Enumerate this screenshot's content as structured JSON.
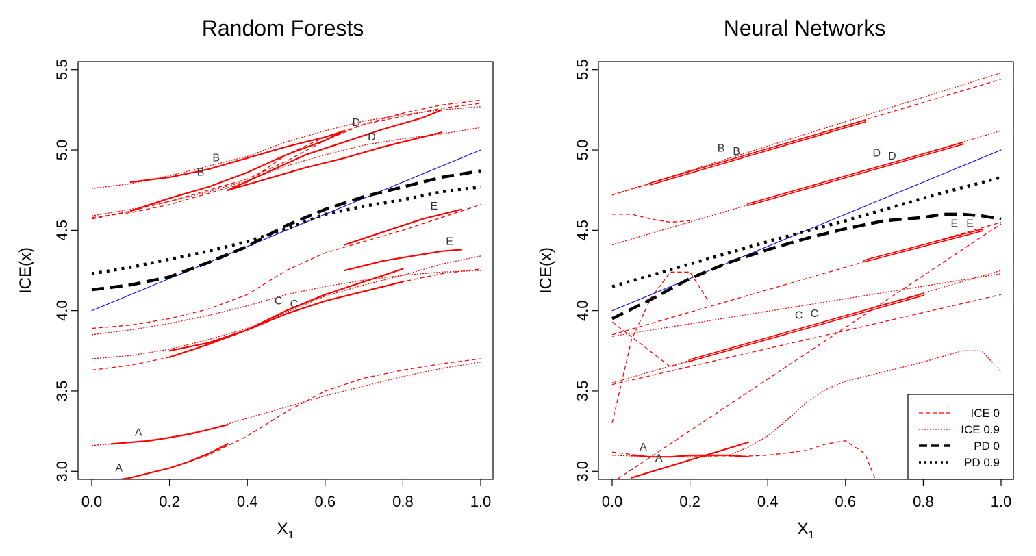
{
  "chart_data": [
    {
      "type": "line",
      "title": "Random Forests",
      "xlabel": "X",
      "xlabel_sub": "1",
      "ylabel": "ICE(x)",
      "xlim": [
        0.0,
        1.0
      ],
      "ylim": [
        2.95,
        5.55
      ],
      "x_ticks": [
        "0.0",
        "0.2",
        "0.4",
        "0.6",
        "0.8",
        "1.0"
      ],
      "y_ticks": [
        "3.0",
        "3.5",
        "4.0",
        "4.5",
        "5.0",
        "5.5"
      ],
      "grid": false,
      "series": [
        {
          "style": "ice0",
          "x": [
            0.0,
            0.1,
            0.2,
            0.3,
            0.4,
            0.5,
            0.6,
            0.7,
            0.8,
            0.9,
            1.0
          ],
          "values": [
            2.92,
            2.96,
            3.02,
            3.1,
            3.22,
            3.37,
            3.5,
            3.58,
            3.63,
            3.67,
            3.7
          ]
        },
        {
          "style": "ice09",
          "x": [
            0.0,
            0.1,
            0.2,
            0.3,
            0.4,
            0.5,
            0.6,
            0.7,
            0.8,
            0.9,
            1.0
          ],
          "values": [
            3.16,
            3.18,
            3.21,
            3.26,
            3.33,
            3.4,
            3.47,
            3.53,
            3.59,
            3.64,
            3.68
          ]
        },
        {
          "style": "ice0",
          "x": [
            0.0,
            0.1,
            0.2,
            0.3,
            0.4,
            0.5,
            0.6,
            0.7,
            0.8,
            0.9,
            1.0
          ],
          "values": [
            3.63,
            3.66,
            3.71,
            3.79,
            3.88,
            3.98,
            4.06,
            4.12,
            4.18,
            4.23,
            4.26
          ]
        },
        {
          "style": "ice09",
          "x": [
            0.0,
            0.1,
            0.2,
            0.3,
            0.4,
            0.5,
            0.6,
            0.7,
            0.8,
            0.9,
            1.0
          ],
          "values": [
            3.7,
            3.72,
            3.76,
            3.82,
            3.89,
            3.99,
            4.09,
            4.16,
            4.22,
            4.29,
            4.34
          ]
        },
        {
          "style": "ice09",
          "x": [
            0.0,
            0.1,
            0.2,
            0.3,
            0.4,
            0.5,
            0.6,
            0.7,
            0.8,
            0.9,
            1.0
          ],
          "values": [
            3.85,
            3.88,
            3.92,
            3.97,
            4.03,
            4.1,
            4.15,
            4.19,
            4.22,
            4.24,
            4.25
          ]
        },
        {
          "style": "ice0",
          "x": [
            0.0,
            0.1,
            0.2,
            0.3,
            0.4,
            0.5,
            0.6,
            0.7,
            0.8,
            0.9,
            1.0
          ],
          "values": [
            3.89,
            3.91,
            3.95,
            4.01,
            4.1,
            4.25,
            4.36,
            4.43,
            4.5,
            4.58,
            4.66
          ]
        },
        {
          "style": "ice0",
          "x": [
            0.0,
            0.1,
            0.2,
            0.3,
            0.4,
            0.5,
            0.6,
            0.7,
            0.8,
            0.9,
            1.0
          ],
          "values": [
            4.57,
            4.62,
            4.68,
            4.75,
            4.82,
            4.93,
            5.06,
            5.16,
            5.23,
            5.28,
            5.31
          ]
        },
        {
          "style": "ice09",
          "x": [
            0.0,
            0.1,
            0.2,
            0.3,
            0.4,
            0.5,
            0.6,
            0.7,
            0.8,
            0.9,
            1.0
          ],
          "values": [
            4.59,
            4.63,
            4.68,
            4.74,
            4.81,
            4.9,
            4.97,
            5.03,
            5.07,
            5.1,
            5.14
          ]
        },
        {
          "style": "ice09",
          "x": [
            0.0,
            0.1,
            0.2,
            0.3,
            0.4,
            0.5,
            0.6,
            0.7,
            0.8,
            0.9,
            1.0
          ],
          "values": [
            4.76,
            4.79,
            4.84,
            4.9,
            4.96,
            5.05,
            5.12,
            5.18,
            5.22,
            5.25,
            5.27
          ]
        },
        {
          "style": "ice0",
          "x": [
            0.0,
            0.1,
            0.2,
            0.3,
            0.4,
            0.5,
            0.6,
            0.7,
            0.8,
            0.9,
            1.0
          ],
          "values": [
            4.58,
            4.61,
            4.66,
            4.73,
            4.8,
            4.97,
            5.08,
            5.16,
            5.21,
            5.26,
            5.29
          ]
        },
        {
          "style": "solid",
          "x": [
            0.05,
            0.1,
            0.15,
            0.2,
            0.25,
            0.3,
            0.35
          ],
          "values": [
            2.94,
            2.96,
            2.99,
            3.02,
            3.06,
            3.11,
            3.17
          ]
        },
        {
          "style": "solid",
          "x": [
            0.05,
            0.1,
            0.15,
            0.2,
            0.25,
            0.3,
            0.35
          ],
          "values": [
            3.17,
            3.18,
            3.19,
            3.21,
            3.23,
            3.26,
            3.29
          ]
        },
        {
          "style": "solid",
          "x": [
            0.2,
            0.3,
            0.4,
            0.5,
            0.6,
            0.7,
            0.8
          ],
          "values": [
            3.71,
            3.79,
            3.88,
            3.98,
            4.06,
            4.12,
            4.18
          ]
        },
        {
          "style": "solid",
          "x": [
            0.2,
            0.3,
            0.4,
            0.5,
            0.6,
            0.7,
            0.8
          ],
          "values": [
            3.75,
            3.8,
            3.88,
            4.0,
            4.1,
            4.18,
            4.26
          ]
        },
        {
          "style": "solid",
          "x": [
            0.1,
            0.2,
            0.3,
            0.4,
            0.5,
            0.6,
            0.65
          ],
          "values": [
            4.62,
            4.7,
            4.77,
            4.86,
            4.97,
            5.06,
            5.12
          ]
        },
        {
          "style": "solid",
          "x": [
            0.1,
            0.2,
            0.3,
            0.4,
            0.5,
            0.6,
            0.65
          ],
          "values": [
            4.8,
            4.83,
            4.88,
            4.95,
            5.02,
            5.08,
            5.12
          ]
        },
        {
          "style": "solid",
          "x": [
            0.35,
            0.45,
            0.55,
            0.65,
            0.75,
            0.85,
            0.9
          ],
          "values": [
            4.75,
            4.82,
            4.89,
            4.95,
            5.02,
            5.08,
            5.11
          ]
        },
        {
          "style": "solid",
          "x": [
            0.35,
            0.45,
            0.55,
            0.65,
            0.75,
            0.85,
            0.9
          ],
          "values": [
            4.75,
            4.86,
            4.97,
            5.05,
            5.13,
            5.2,
            5.25
          ]
        },
        {
          "style": "solid",
          "x": [
            0.65,
            0.7,
            0.75,
            0.8,
            0.85,
            0.9,
            0.95
          ],
          "values": [
            4.41,
            4.45,
            4.49,
            4.53,
            4.57,
            4.6,
            4.63
          ]
        },
        {
          "style": "solid",
          "x": [
            0.65,
            0.7,
            0.75,
            0.8,
            0.85,
            0.9,
            0.95
          ],
          "values": [
            4.25,
            4.28,
            4.31,
            4.33,
            4.35,
            4.37,
            4.38
          ]
        },
        {
          "style": "blue",
          "x": [
            0.0,
            1.0
          ],
          "values": [
            4.0,
            5.0
          ]
        },
        {
          "style": "pd0",
          "x": [
            0.0,
            0.1,
            0.2,
            0.3,
            0.4,
            0.5,
            0.6,
            0.7,
            0.8,
            0.9,
            1.0
          ],
          "values": [
            4.13,
            4.16,
            4.21,
            4.3,
            4.4,
            4.53,
            4.63,
            4.71,
            4.77,
            4.83,
            4.87
          ]
        },
        {
          "style": "pd09",
          "x": [
            0.0,
            0.1,
            0.2,
            0.3,
            0.4,
            0.5,
            0.6,
            0.7,
            0.8,
            0.9,
            1.0
          ],
          "values": [
            4.23,
            4.27,
            4.32,
            4.37,
            4.43,
            4.51,
            4.6,
            4.65,
            4.69,
            4.74,
            4.77
          ]
        }
      ],
      "annotations": [
        {
          "text": "A",
          "x": 0.07,
          "y": 3.0
        },
        {
          "text": "A",
          "x": 0.12,
          "y": 3.22
        },
        {
          "text": "B",
          "x": 0.28,
          "y": 4.84
        },
        {
          "text": "B",
          "x": 0.32,
          "y": 4.93
        },
        {
          "text": "C",
          "x": 0.48,
          "y": 4.04
        },
        {
          "text": "C",
          "x": 0.52,
          "y": 4.02
        },
        {
          "text": "D",
          "x": 0.68,
          "y": 5.15
        },
        {
          "text": "D",
          "x": 0.72,
          "y": 5.06
        },
        {
          "text": "E",
          "x": 0.88,
          "y": 4.63
        },
        {
          "text": "E",
          "x": 0.92,
          "y": 4.41
        }
      ]
    },
    {
      "type": "line",
      "title": "Neural Networks",
      "xlabel": "X",
      "xlabel_sub": "1",
      "ylabel": "ICE(x)",
      "xlim": [
        0.0,
        1.0
      ],
      "ylim": [
        2.95,
        5.55
      ],
      "x_ticks": [
        "0.0",
        "0.2",
        "0.4",
        "0.6",
        "0.8",
        "1.0"
      ],
      "y_ticks": [
        "3.0",
        "3.5",
        "4.0",
        "4.5",
        "5.0",
        "5.5"
      ],
      "grid": false,
      "legend": {
        "position": "bottom-right",
        "items": [
          {
            "label": "ICE 0",
            "style": "ice0"
          },
          {
            "label": "ICE 0.9",
            "style": "ice09"
          },
          {
            "label": "PD 0",
            "style": "pd0"
          },
          {
            "label": "PD 0.9",
            "style": "pd09"
          }
        ]
      },
      "series": [
        {
          "style": "ice0",
          "x": [
            0.0,
            1.0
          ],
          "values": [
            2.93,
            4.54
          ]
        },
        {
          "style": "ice09",
          "x": [
            0.0,
            1.0
          ],
          "values": [
            3.55,
            4.25
          ]
        },
        {
          "style": "ice0",
          "x": [
            0.0,
            1.0
          ],
          "values": [
            3.85,
            4.55
          ]
        },
        {
          "style": "ice09",
          "x": [
            0.0,
            1.0
          ],
          "values": [
            4.41,
            5.12
          ]
        },
        {
          "style": "ice0",
          "x": [
            0.0,
            1.0
          ],
          "values": [
            4.72,
            5.44
          ]
        },
        {
          "style": "ice09",
          "x": [
            0.0,
            1.0
          ],
          "values": [
            4.72,
            5.48
          ]
        },
        {
          "style": "ice09",
          "x": [
            0.0,
            1.0
          ],
          "values": [
            3.84,
            4.23
          ]
        },
        {
          "style": "ice0",
          "x": [
            0.0,
            1.0
          ],
          "values": [
            3.54,
            4.1
          ]
        },
        {
          "style": "ice0",
          "x": [
            0.0,
            0.05,
            0.1,
            0.15,
            0.2,
            0.25
          ],
          "values": [
            3.3,
            3.82,
            4.08,
            4.24,
            4.24,
            4.05
          ]
        },
        {
          "style": "ice0",
          "x": [
            0.0,
            0.07,
            0.15,
            0.22
          ],
          "values": [
            3.93,
            3.8,
            3.65,
            3.7
          ]
        },
        {
          "style": "ice0",
          "x": [
            0.0,
            0.05,
            0.1,
            0.15,
            0.2
          ],
          "values": [
            4.6,
            4.6,
            4.57,
            4.55,
            4.56
          ]
        },
        {
          "style": "ice0",
          "x": [
            0.0,
            0.1,
            0.2,
            0.3,
            0.4,
            0.5,
            0.55,
            0.6,
            0.65,
            0.68,
            0.69
          ],
          "values": [
            3.12,
            3.09,
            3.09,
            3.09,
            3.1,
            3.13,
            3.17,
            3.19,
            3.11,
            2.93,
            2.9
          ]
        },
        {
          "style": "ice09",
          "x": [
            0.0,
            0.1,
            0.2,
            0.3,
            0.35,
            0.4,
            0.45,
            0.5,
            0.55,
            0.6,
            0.7,
            0.8,
            0.9,
            0.95,
            1.0
          ],
          "values": [
            3.1,
            3.09,
            3.09,
            3.1,
            3.15,
            3.22,
            3.32,
            3.43,
            3.51,
            3.56,
            3.62,
            3.68,
            3.75,
            3.75,
            3.62
          ]
        },
        {
          "style": "solid",
          "x": [
            0.05,
            0.35
          ],
          "values": [
            2.96,
            3.18
          ]
        },
        {
          "style": "solid",
          "x": [
            0.05,
            0.1,
            0.15,
            0.2,
            0.25,
            0.3,
            0.35
          ],
          "values": [
            3.1,
            3.09,
            3.09,
            3.1,
            3.1,
            3.1,
            3.09
          ]
        },
        {
          "style": "double",
          "x": [
            0.1,
            0.65
          ],
          "values": [
            4.79,
            5.18
          ]
        },
        {
          "style": "double",
          "x": [
            0.2,
            0.8
          ],
          "values": [
            3.69,
            4.1
          ]
        },
        {
          "style": "double",
          "x": [
            0.35,
            0.9
          ],
          "values": [
            4.66,
            5.04
          ]
        },
        {
          "style": "double",
          "x": [
            0.65,
            0.95
          ],
          "values": [
            4.31,
            4.5
          ]
        },
        {
          "style": "blue",
          "x": [
            0.0,
            1.0
          ],
          "values": [
            4.0,
            5.0
          ]
        },
        {
          "style": "pd0",
          "x": [
            0.0,
            0.1,
            0.2,
            0.3,
            0.4,
            0.5,
            0.6,
            0.7,
            0.8,
            0.85,
            0.9,
            0.95,
            1.0
          ],
          "values": [
            3.95,
            4.07,
            4.2,
            4.3,
            4.38,
            4.45,
            4.51,
            4.56,
            4.58,
            4.6,
            4.6,
            4.59,
            4.57
          ]
        },
        {
          "style": "pd09",
          "x": [
            0.0,
            0.2,
            0.4,
            0.6,
            0.8,
            1.0
          ],
          "values": [
            4.15,
            4.29,
            4.43,
            4.56,
            4.7,
            4.83
          ]
        }
      ],
      "annotations": [
        {
          "text": "A",
          "x": 0.08,
          "y": 3.13
        },
        {
          "text": "A",
          "x": 0.12,
          "y": 3.06
        },
        {
          "text": "B",
          "x": 0.28,
          "y": 4.99
        },
        {
          "text": "B",
          "x": 0.32,
          "y": 4.97
        },
        {
          "text": "C",
          "x": 0.48,
          "y": 3.95
        },
        {
          "text": "C",
          "x": 0.52,
          "y": 3.96
        },
        {
          "text": "D",
          "x": 0.68,
          "y": 4.96
        },
        {
          "text": "D",
          "x": 0.72,
          "y": 4.94
        },
        {
          "text": "E",
          "x": 0.88,
          "y": 4.52
        },
        {
          "text": "E",
          "x": 0.92,
          "y": 4.52
        }
      ]
    }
  ],
  "colors": {
    "ice": "#ff0000",
    "pd": "#000000",
    "reference": "#0000ff",
    "axis": "#000000",
    "background": "#ffffff"
  }
}
